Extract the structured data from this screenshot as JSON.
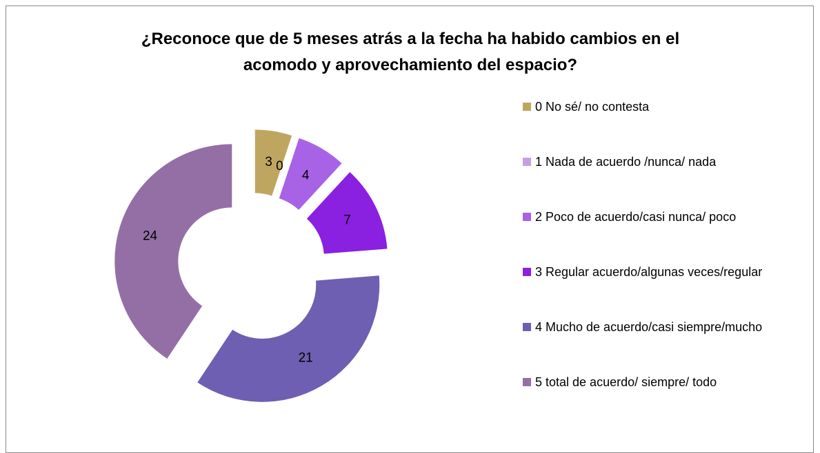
{
  "chart_data": {
    "type": "donut",
    "title": "¿Reconoce que de 5 meses atrás a la fecha ha habido cambios en el acomodo y aprovechamiento del espacio?",
    "categories": [
      "0 No sé/ no contesta",
      "1 Nada de acuerdo /nunca/ nada",
      "2 Poco de acuerdo/casi nunca/ poco",
      "3 Regular acuerdo/algunas veces/regular",
      "4 Mucho de acuerdo/casi siempre/mucho",
      "5 total de acuerdo/ siempre/ todo"
    ],
    "values": [
      3,
      0,
      4,
      7,
      21,
      24
    ],
    "colors": [
      "#bfa660",
      "#c4a0e2",
      "#a862e6",
      "#8a20e0",
      "#6f5fb2",
      "#946fa6"
    ],
    "legend": "right"
  }
}
